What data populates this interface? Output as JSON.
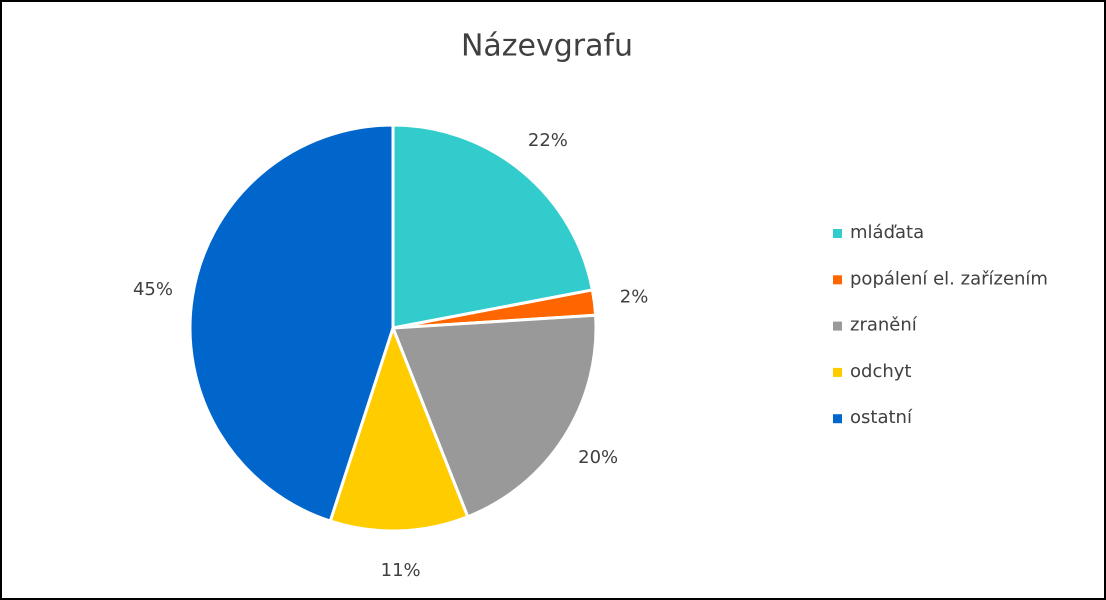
{
  "chart_data": {
    "type": "pie",
    "title": "Názevgrafu",
    "categories": [
      "mláďata",
      "popálení el. zařízením",
      "zranění",
      "odchyt",
      "ostatní"
    ],
    "values": [
      22,
      2,
      20,
      11,
      45
    ],
    "value_labels": [
      "22%",
      "2%",
      "20%",
      "11%",
      "45%"
    ],
    "colors": [
      "#33CCCC",
      "#FF6600",
      "#999999",
      "#FFCC00",
      "#0066CC"
    ],
    "legend": "right"
  }
}
